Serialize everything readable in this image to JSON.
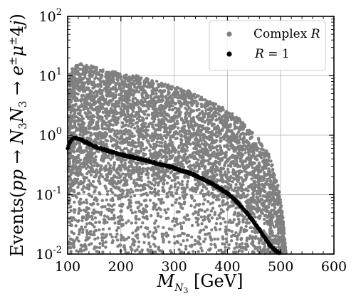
{
  "chart_data": {
    "type": "scatter",
    "title": "",
    "xlabel": "M_N3 [GeV]",
    "ylabel": "Events(pp → N3N3 → e±μ±4j)",
    "xlim": [
      100,
      600
    ],
    "ylim": [
      0.01,
      100
    ],
    "yscale": "log",
    "grid": true,
    "legend_position": "top-right",
    "x_ticks": [
      "100",
      "200",
      "300",
      "400",
      "500",
      "600"
    ],
    "y_ticks": [
      "10^-2",
      "10^-1",
      "10^0",
      "10^1",
      "10^2"
    ],
    "series": [
      {
        "name": "Complex R",
        "color": "#808080",
        "marker": "circle",
        "band_x": [
          100,
          110,
          120,
          140,
          160,
          180,
          200,
          230,
          260,
          290,
          320,
          350,
          380,
          400,
          420,
          440,
          460,
          480,
          495,
          505,
          510
        ],
        "band_upper": [
          10,
          14,
          16.5,
          15,
          13.5,
          12.5,
          11,
          10,
          8.5,
          7,
          6,
          4.5,
          3.3,
          2.7,
          2.0,
          1.3,
          0.85,
          0.45,
          0.15,
          0.04,
          0.01
        ],
        "band_lower": [
          0.08,
          0.09,
          0.09,
          0.1,
          0.1,
          0.11,
          0.1,
          0.1,
          0.09,
          0.09,
          0.08,
          0.07,
          0.06,
          0.05,
          0.04,
          0.03,
          0.02,
          0.015,
          0.012,
          0.01,
          0.01
        ],
        "sparse_floor": 0.01
      },
      {
        "name": "R = 1",
        "color": "#000000",
        "marker": "circle",
        "x": [
          100,
          105,
          110,
          115,
          120,
          130,
          140,
          150,
          160,
          175,
          190,
          210,
          230,
          250,
          270,
          290,
          310,
          330,
          350,
          370,
          390,
          400,
          410,
          420,
          430,
          440,
          450,
          460,
          470,
          480,
          490,
          500
        ],
        "y": [
          0.6,
          0.78,
          0.88,
          0.9,
          0.88,
          0.8,
          0.72,
          0.66,
          0.6,
          0.55,
          0.5,
          0.45,
          0.41,
          0.37,
          0.33,
          0.3,
          0.26,
          0.23,
          0.19,
          0.155,
          0.12,
          0.105,
          0.088,
          0.072,
          0.058,
          0.045,
          0.034,
          0.026,
          0.019,
          0.014,
          0.0115,
          0.01
        ]
      }
    ]
  },
  "legend": [
    {
      "label": "Complex R",
      "prefix": "Complex ",
      "var": "R",
      "color": "#808080"
    },
    {
      "label": "R = 1",
      "var": "R",
      "rest": " = 1",
      "color": "#000000"
    }
  ]
}
